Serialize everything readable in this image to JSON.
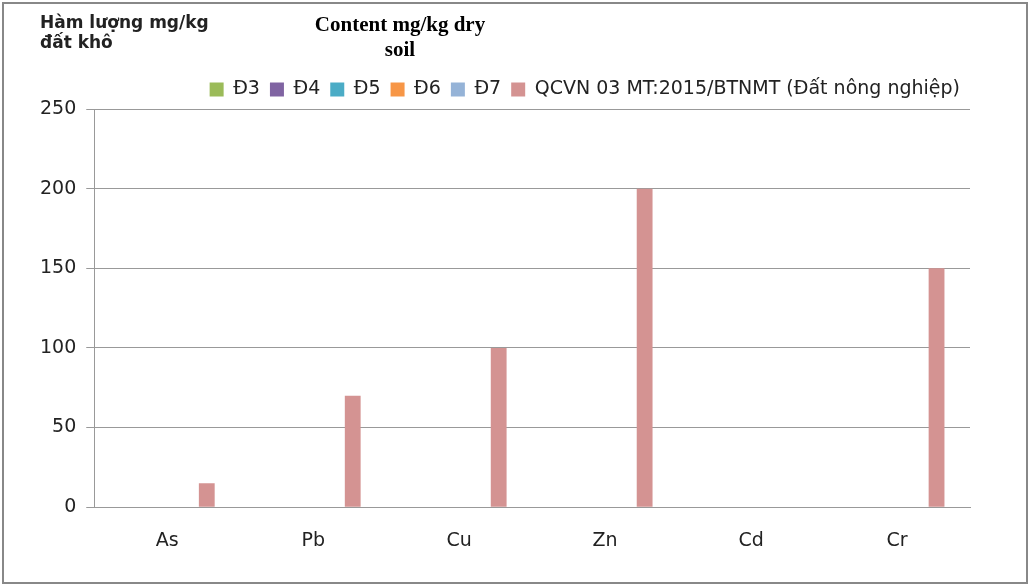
{
  "chart_data": {
    "type": "bar",
    "ylabel": "Hàm lượng mg/kg đất khô",
    "annotations": [
      "Content mg/kg dry soil"
    ],
    "categories": [
      "As",
      "Pb",
      "Cu",
      "Zn",
      "Cd",
      "Cr"
    ],
    "series": [
      {
        "name": "Đ3",
        "color": "#9bbb59",
        "values": [
          0,
          0,
          0,
          0,
          0,
          0
        ]
      },
      {
        "name": "Đ4",
        "color": "#8064a2",
        "values": [
          0,
          0,
          0,
          0,
          0,
          0
        ]
      },
      {
        "name": "Đ5",
        "color": "#4bacc6",
        "values": [
          0,
          0,
          0,
          0,
          0,
          0
        ]
      },
      {
        "name": "Đ6",
        "color": "#f79646",
        "values": [
          0,
          0,
          0,
          0,
          0,
          0
        ]
      },
      {
        "name": "Đ7",
        "color": "#95b3d7",
        "values": [
          0,
          0,
          0,
          0,
          0,
          0
        ]
      },
      {
        "name": "QCVN 03 MT:2015/BTNMT (Đất nông nghiệp)",
        "color": "#d49392",
        "values": [
          15,
          70,
          100,
          200,
          0,
          150
        ]
      }
    ],
    "ylim": [
      0,
      250
    ],
    "yticks": [
      0,
      50,
      100,
      150,
      200,
      250
    ],
    "grid": "y",
    "legend": "top"
  }
}
